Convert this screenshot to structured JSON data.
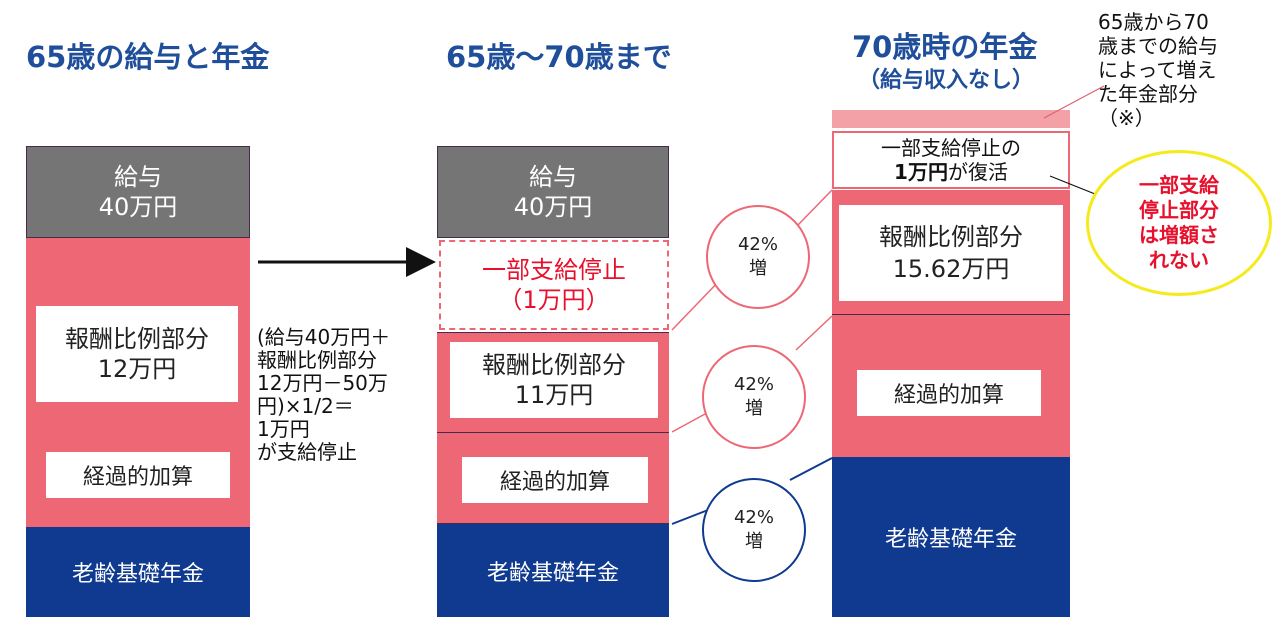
{
  "headings": {
    "col1": "65歳の給与と年金",
    "col2": "65歳～70歳まで",
    "col3": "70歳時の年金",
    "col3_sub": "（給与収入なし）"
  },
  "col1": {
    "salary_line1": "給与",
    "salary_line2": "40万円",
    "hoshu_line1": "報酬比例部分",
    "hoshu_line2": "12万円",
    "keika": "経過的加算",
    "rorei": "老齢基礎年金"
  },
  "explain": {
    "line1": "(給与40万円＋",
    "line2": "報酬比例部分",
    "line3": "12万円－50万",
    "line4": "円)×1/2＝",
    "line5": "1万円",
    "line6": "が支給停止"
  },
  "col2": {
    "salary_line1": "給与",
    "salary_line2": "40万円",
    "stop_line1": "一部支給停止",
    "stop_line2": "（1万円）",
    "hoshu_line1": "報酬比例部分",
    "hoshu_line2": "11万円",
    "keika": "経過的加算",
    "rorei": "老齢基礎年金"
  },
  "circles": {
    "c1_line1": "42%",
    "c1_line2": "増",
    "c2_line1": "42%",
    "c2_line2": "増",
    "c3_line1": "42%",
    "c3_line2": "増"
  },
  "col3": {
    "restore_line1": "一部支給停止の",
    "restore_bold": "1万円",
    "restore_rest": "が復活",
    "hoshu_line1": "報酬比例部分",
    "hoshu_line2": "15.62万円",
    "keika": "経過的加算",
    "rorei": "老齢基礎年金"
  },
  "annotation": {
    "line1": "65歳から70",
    "line2": "歳までの給与",
    "line3": "によって増え",
    "line4": "た年金部分",
    "line5": "（※）"
  },
  "callout": {
    "line1": "一部支給",
    "line2": "停止部分",
    "line3": "は増額さ",
    "line4": "れない"
  },
  "colors": {
    "heading": "#1f4e9a",
    "salary": "#757575",
    "pink": "#ed6775",
    "navy": "#0f3a8f",
    "callout_border": "#f5ea1c",
    "callout_text": "#e8112d"
  }
}
